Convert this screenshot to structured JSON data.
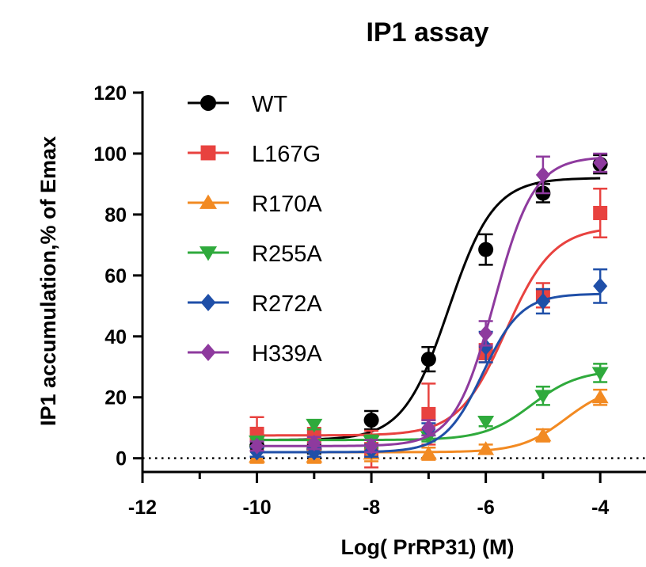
{
  "chart_data": {
    "type": "line",
    "title": "IP1 assay",
    "xlabel": "Log( PrRP31) (M)",
    "ylabel": "IP1 accumulation,% of Emax",
    "xlim": [
      -12,
      -3.2
    ],
    "ylim": [
      -4.5,
      120
    ],
    "xticks": [
      -12,
      -10,
      -8,
      -6,
      -4
    ],
    "xtick_labels": [
      "-12",
      "-10",
      "-8",
      "-6",
      "-4"
    ],
    "xminor_ticks": [
      -11,
      -9,
      -7,
      -5
    ],
    "yticks": [
      0,
      20,
      40,
      60,
      80,
      100,
      120
    ],
    "ytick_labels": [
      "0",
      "20",
      "40",
      "60",
      "80",
      "100",
      "120"
    ],
    "reference_line": {
      "y": 0,
      "style": "dotted"
    },
    "legend_position": "top-left",
    "x": [
      -10,
      -9,
      -8,
      -7,
      -6,
      -5,
      -4
    ],
    "series": [
      {
        "name": "WT",
        "color": "#000000",
        "marker": "circle",
        "values": [
          4,
          3,
          12.5,
          32.5,
          68.5,
          87,
          96.5
        ],
        "errors": [
          1.5,
          1.5,
          3,
          4,
          5,
          3,
          3
        ],
        "fit": {
          "bottom": 6,
          "top": 92,
          "logec50": -6.65,
          "hill": 1.1
        }
      },
      {
        "name": "L167G",
        "color": "#e8423f",
        "marker": "square",
        "values": [
          8,
          7,
          3,
          14.5,
          34.5,
          53.5,
          80.5
        ],
        "errors": [
          5.5,
          3,
          6,
          10,
          3,
          4,
          8
        ],
        "fit": {
          "bottom": 7.5,
          "top": 76,
          "logec50": -5.65,
          "hill": 1.05
        }
      },
      {
        "name": "R170A",
        "color": "#f28a22",
        "marker": "triangle-up",
        "values": [
          0.5,
          0.5,
          1.5,
          1.5,
          3,
          7.5,
          20
        ],
        "errors": [
          2,
          2,
          2.5,
          2,
          1.5,
          2,
          2.5
        ],
        "fit": {
          "bottom": 2,
          "top": 24,
          "logec50": -4.6,
          "hill": 1.1
        }
      },
      {
        "name": "R255A",
        "color": "#2faa3c",
        "marker": "triangle-down",
        "values": [
          5.5,
          11,
          5.5,
          7,
          12,
          20.5,
          28
        ],
        "errors": [
          1.5,
          1.5,
          2,
          1.5,
          1.5,
          3,
          3
        ],
        "fit": {
          "bottom": 6,
          "top": 29,
          "logec50": -5.2,
          "hill": 1.05
        }
      },
      {
        "name": "R272A",
        "color": "#1f4fa8",
        "marker": "diamond",
        "values": [
          2,
          2,
          2.5,
          9.5,
          36.5,
          51.5,
          56.5
        ],
        "errors": [
          1.5,
          1.5,
          2,
          2,
          5,
          4,
          5.5
        ],
        "fit": {
          "bottom": 2,
          "top": 54,
          "logec50": -6.05,
          "hill": 1.3
        }
      },
      {
        "name": "H339A",
        "color": "#8e3a9e",
        "marker": "diamond",
        "values": [
          4,
          5,
          4,
          10,
          41,
          93,
          97
        ],
        "errors": [
          1.5,
          2,
          2,
          2.5,
          4,
          6,
          3
        ],
        "fit": {
          "bottom": 4,
          "top": 99,
          "logec50": -5.85,
          "hill": 1.25
        }
      }
    ]
  }
}
